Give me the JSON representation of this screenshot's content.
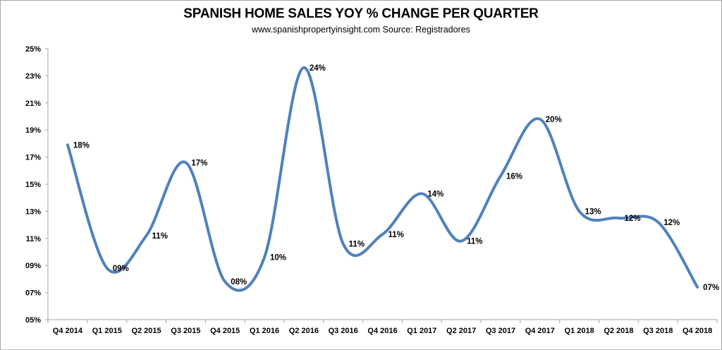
{
  "chart_data": {
    "type": "line",
    "title": "SPANISH HOME SALES YOY % CHANGE PER QUARTER",
    "subtitle": "www.spanishpropertyinsight.com Source: Registradores",
    "xlabel": "",
    "ylabel": "",
    "ylim": [
      5,
      25
    ],
    "y_ticks": [
      5,
      7,
      9,
      11,
      13,
      15,
      17,
      19,
      21,
      23,
      25
    ],
    "y_tick_labels": [
      "05%",
      "07%",
      "09%",
      "11%",
      "13%",
      "15%",
      "17%",
      "19%",
      "21%",
      "23%",
      "25%"
    ],
    "grid": false,
    "smooth": true,
    "legend": "none",
    "line_color": "#4f81bd",
    "categories": [
      "Q4 2014",
      "Q1 2015",
      "Q2 2015",
      "Q3 2015",
      "Q4 2015",
      "Q1 2016",
      "Q2 2016",
      "Q3 2016",
      "Q4 2016",
      "Q1 2017",
      "Q2 2017",
      "Q3 2017",
      "Q4 2017",
      "Q1 2018",
      "Q2 2018",
      "Q3 2018",
      "Q4 2018"
    ],
    "series": [
      {
        "name": "YoY % change",
        "values": [
          17.9,
          8.8,
          11.2,
          16.6,
          7.8,
          9.6,
          23.6,
          10.6,
          11.3,
          14.3,
          10.8,
          15.6,
          19.8,
          13.0,
          12.5,
          12.2,
          7.4
        ],
        "labels": [
          "18%",
          "09%",
          "11%",
          "17%",
          "08%",
          "10%",
          "24%",
          "11%",
          "11%",
          "14%",
          "11%",
          "16%",
          "20%",
          "13%",
          "12%",
          "12%",
          "07%"
        ]
      }
    ]
  }
}
